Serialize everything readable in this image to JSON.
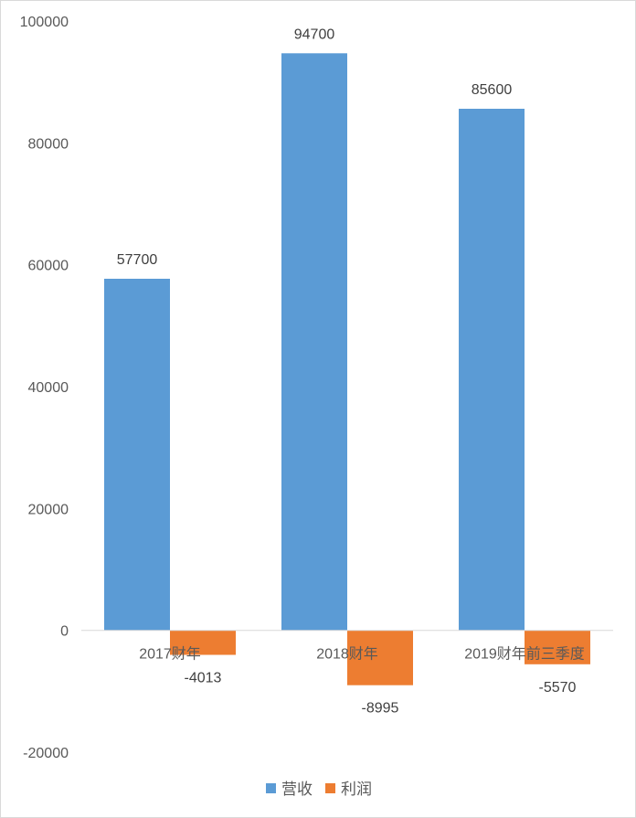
{
  "chart_data": {
    "type": "bar",
    "categories": [
      "2017财年",
      "2018财年",
      "2019财年前三季度"
    ],
    "series": [
      {
        "name": "营收",
        "values": [
          57700,
          94700,
          85600
        ],
        "color": "#5b9bd5"
      },
      {
        "name": "利润",
        "values": [
          -4013,
          -8995,
          -5570
        ],
        "color": "#ed7d31"
      }
    ],
    "data_labels": [
      [
        "57700",
        "94700",
        "85600"
      ],
      [
        "-4013",
        "-8995",
        "-5570"
      ]
    ],
    "y_ticks": [
      "100000",
      "80000",
      "60000",
      "40000",
      "20000",
      "0",
      "-20000"
    ],
    "y_tick_values": [
      100000,
      80000,
      60000,
      40000,
      20000,
      0,
      -20000
    ],
    "ylim": [
      -20000,
      100000
    ],
    "grid": false,
    "legend_position": "bottom",
    "axis_line_color": "#d9d9d9"
  }
}
